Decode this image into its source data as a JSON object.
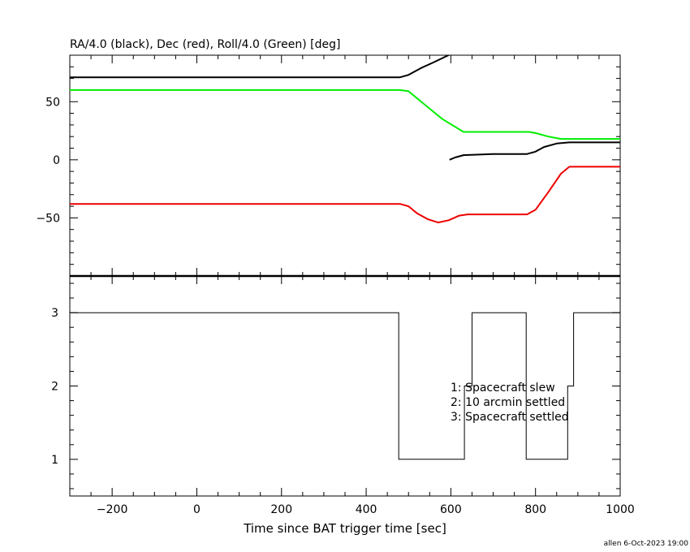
{
  "chart_data": [
    {
      "type": "line",
      "title": "RA/4.0 (black), Dec (red), Roll/4.0 (Green) [deg]",
      "xlim": [
        -300,
        1000
      ],
      "ylim": [
        -100,
        90
      ],
      "yticks": [
        -50,
        0,
        50
      ],
      "grid": false,
      "series": [
        {
          "color": "#000000",
          "x": [
            -300,
            0,
            380,
            480,
            500,
            530,
            560,
            600
          ],
          "y": [
            71,
            71,
            71,
            71,
            73,
            79,
            84,
            91
          ]
        },
        {
          "color": "#000000",
          "x": [
            597,
            610,
            630,
            700,
            780,
            800,
            820,
            850,
            880,
            1000
          ],
          "y": [
            0,
            2,
            4,
            5,
            5,
            7,
            11,
            14,
            15,
            15
          ]
        },
        {
          "color": "#00ee00",
          "x": [
            -300,
            0,
            380,
            480,
            500,
            540,
            580,
            630,
            700,
            785,
            800,
            830,
            860,
            900,
            1000
          ],
          "y": [
            60,
            60,
            60,
            60,
            59,
            47,
            35,
            24,
            24,
            24,
            23,
            20,
            18,
            18,
            18
          ]
        },
        {
          "color": "#ee0000",
          "x": [
            -300,
            0,
            380,
            480,
            500,
            520,
            545,
            570,
            595,
            620,
            640,
            700,
            780,
            800,
            830,
            860,
            880,
            1000
          ],
          "y": [
            -38,
            -38,
            -38,
            -38,
            -40,
            -46,
            -51,
            -54,
            -52,
            -48,
            -47,
            -47,
            -47,
            -43,
            -28,
            -12,
            -6,
            -6
          ]
        }
      ]
    },
    {
      "type": "line",
      "xlabel": "Time since BAT trigger time [sec]",
      "xlim": [
        -300,
        1000
      ],
      "ylim": [
        0.5,
        3.5
      ],
      "xticks": [
        -200,
        0,
        200,
        400,
        600,
        800,
        1000
      ],
      "yticks": [
        1,
        2,
        3
      ],
      "grid": false,
      "series": [
        {
          "color": "#000000",
          "x": [
            -300,
            477,
            477,
            632,
            632,
            650,
            650,
            778,
            778,
            876,
            876,
            890,
            890,
            1000
          ],
          "y": [
            3,
            3,
            1,
            1,
            2,
            2,
            3,
            3,
            1,
            1,
            2,
            2,
            3,
            3
          ]
        }
      ],
      "annotations": [
        "1: Spacecraft slew",
        "2: 10 arcmin settled",
        "3: Spacecraft settled"
      ]
    }
  ],
  "footer": {
    "credit": "allen  6-Oct-2023 19:00"
  }
}
